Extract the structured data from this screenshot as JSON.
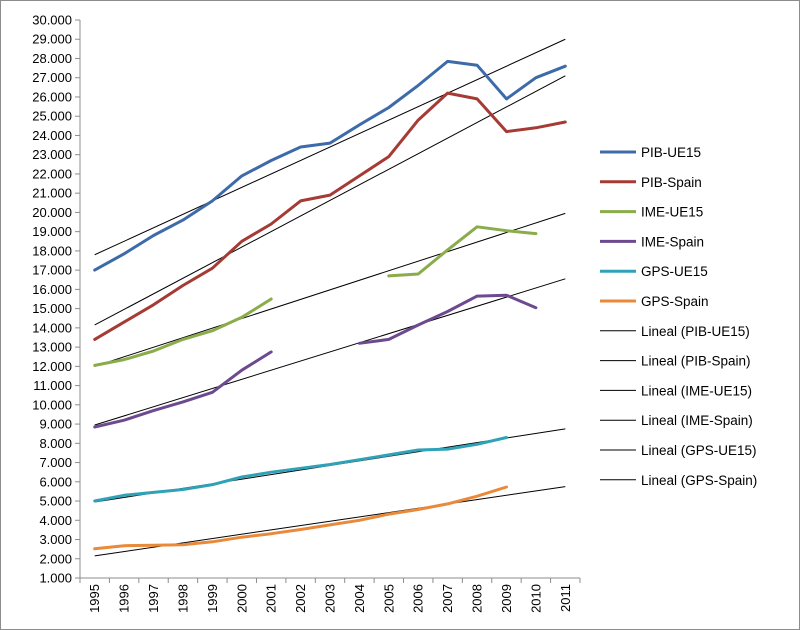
{
  "chart_data": {
    "type": "line",
    "title": "",
    "xlabel": "",
    "ylabel": "",
    "ylim": [
      1000,
      30000
    ],
    "y_tick_step": 1000,
    "categories": [
      "1995",
      "1996",
      "1997",
      "1998",
      "1999",
      "2000",
      "2001",
      "2002",
      "2003",
      "2004",
      "2005",
      "2006",
      "2007",
      "2008",
      "2009",
      "2010",
      "2011"
    ],
    "series": [
      {
        "name": "PIB-UE15",
        "color": "#3d6ba9",
        "values": [
          17000,
          17850,
          18800,
          19600,
          20600,
          21900,
          22700,
          23400,
          23600,
          24550,
          25450,
          26600,
          27850,
          27650,
          25900,
          27000,
          27600
        ]
      },
      {
        "name": "PIB-Spain",
        "color": "#a53b34",
        "values": [
          13400,
          14300,
          15200,
          16200,
          17100,
          18500,
          19400,
          20600,
          20900,
          21900,
          22900,
          24800,
          26200,
          25900,
          24200,
          24400,
          24700
        ]
      },
      {
        "name": "IME-UE15",
        "color": "#8aac4a",
        "values": [
          12050,
          12350,
          12800,
          13400,
          13850,
          14550,
          15500,
          null,
          null,
          null,
          16700,
          16800,
          18050,
          19250,
          19050,
          18900,
          null
        ]
      },
      {
        "name": "IME-Spain",
        "color": "#6d4a8f",
        "values": [
          8850,
          9200,
          9700,
          10150,
          10650,
          11800,
          12750,
          null,
          null,
          13200,
          13400,
          14150,
          14850,
          15650,
          15700,
          15050,
          null
        ]
      },
      {
        "name": "GPS-UE15",
        "color": "#30a2b8",
        "values": [
          5000,
          5300,
          5450,
          5600,
          5850,
          6250,
          6500,
          6700,
          6900,
          7150,
          7400,
          7650,
          7700,
          7950,
          8300,
          null,
          null
        ]
      },
      {
        "name": "GPS-Spain",
        "color": "#e98a3a",
        "values": [
          2520,
          2680,
          2700,
          2730,
          2880,
          3120,
          3300,
          3520,
          3760,
          4000,
          4320,
          4560,
          4850,
          5250,
          5730,
          null,
          null
        ]
      }
    ],
    "trendlines": [
      {
        "name": "Lineal (PIB-UE15)",
        "color": "#000000",
        "start_value": 17800,
        "end_value": 29000,
        "x_start": "1995",
        "x_end": "2011"
      },
      {
        "name": "Lineal (PIB-Spain)",
        "color": "#000000",
        "start_value": 14150,
        "end_value": 27100,
        "x_start": "1995",
        "x_end": "2011"
      },
      {
        "name": "Lineal (IME-UE15)",
        "color": "#000000",
        "start_value": 12000,
        "end_value": 19950,
        "x_start": "1995",
        "x_end": "2011"
      },
      {
        "name": "Lineal (IME-Spain)",
        "color": "#000000",
        "start_value": 8950,
        "end_value": 16550,
        "x_start": "1995",
        "x_end": "2011"
      },
      {
        "name": "Lineal (GPS-UE15)",
        "color": "#000000",
        "start_value": 4950,
        "end_value": 8750,
        "x_start": "1995",
        "x_end": "2011"
      },
      {
        "name": "Lineal (GPS-Spain)",
        "color": "#000000",
        "start_value": 2150,
        "end_value": 5750,
        "x_start": "1995",
        "x_end": "2011"
      }
    ],
    "legend_position": "right",
    "grid": false
  }
}
